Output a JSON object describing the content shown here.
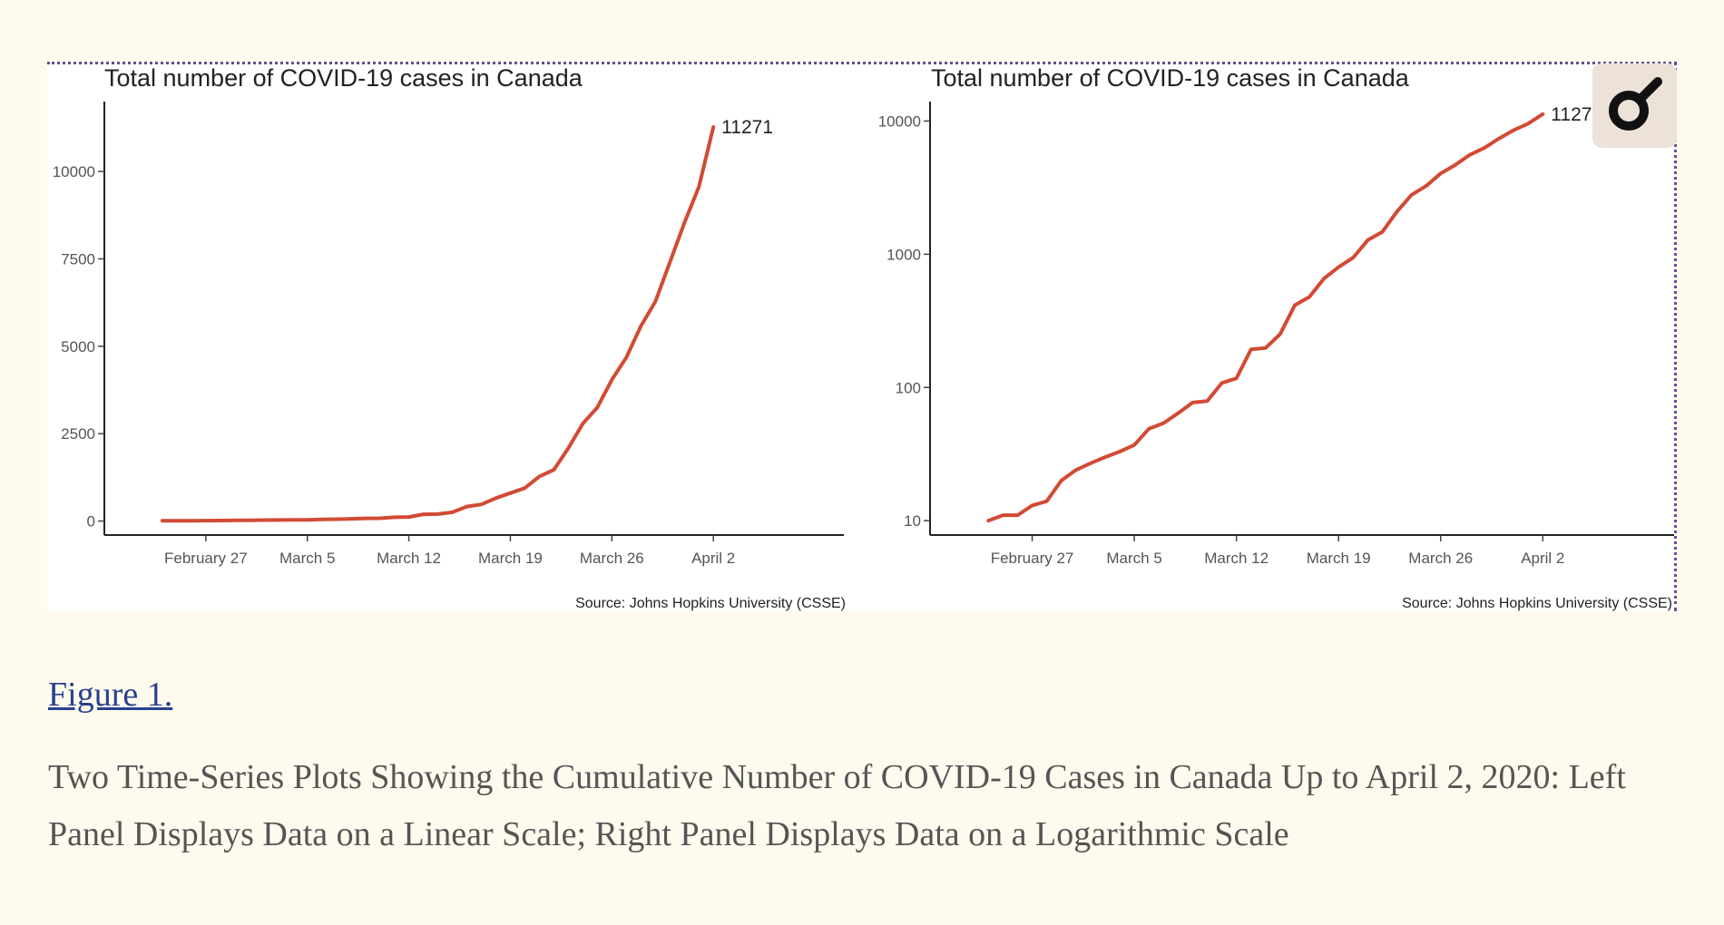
{
  "chart_data": [
    {
      "type": "line",
      "title": "Total number of COVID-19 cases in Canada",
      "source": "Source: Johns Hopkins University (CSSE)",
      "y_scale": "linear",
      "ylim": [
        0,
        12000
      ],
      "y_ticks": [
        {
          "value": 0,
          "label": "0"
        },
        {
          "value": 2500,
          "label": "2500"
        },
        {
          "value": 5000,
          "label": "5000"
        },
        {
          "value": 7500,
          "label": "7500"
        },
        {
          "value": 10000,
          "label": "10000"
        }
      ],
      "x_ticks": [
        "February 27",
        "March 5",
        "March 12",
        "March 19",
        "March 26",
        "April 2"
      ],
      "end_label": "11271",
      "line_color": "#d24a34",
      "series": [
        {
          "x": [
            "2020-02-24",
            "2020-02-25",
            "2020-02-26",
            "2020-02-27",
            "2020-02-28",
            "2020-02-29",
            "2020-03-01",
            "2020-03-02",
            "2020-03-03",
            "2020-03-04",
            "2020-03-05",
            "2020-03-06",
            "2020-03-07",
            "2020-03-08",
            "2020-03-09",
            "2020-03-10",
            "2020-03-11",
            "2020-03-12",
            "2020-03-13",
            "2020-03-14",
            "2020-03-15",
            "2020-03-16",
            "2020-03-17",
            "2020-03-18",
            "2020-03-19",
            "2020-03-20",
            "2020-03-21",
            "2020-03-22",
            "2020-03-23",
            "2020-03-24",
            "2020-03-25",
            "2020-03-26",
            "2020-03-27",
            "2020-03-28",
            "2020-03-29",
            "2020-03-30",
            "2020-03-31",
            "2020-04-01",
            "2020-04-02"
          ],
          "y": [
            10,
            11,
            11,
            13,
            14,
            20,
            24,
            27,
            30,
            33,
            37,
            49,
            54,
            64,
            77,
            79,
            108,
            117,
            193,
            198,
            252,
            415,
            478,
            657,
            800,
            943,
            1277,
            1469,
            2088,
            2790,
            3251,
            4042,
            4682,
            5576,
            6280,
            7398,
            8527,
            9560,
            11271
          ]
        }
      ]
    },
    {
      "type": "line",
      "title": "Total number of COVID-19 cases in Canada",
      "source": "Source: Johns Hopkins University (CSSE)",
      "y_scale": "log",
      "ylim": [
        7.8,
        14000
      ],
      "y_ticks": [
        {
          "value": 10,
          "label": "10"
        },
        {
          "value": 100,
          "label": "100"
        },
        {
          "value": 1000,
          "label": "1000"
        },
        {
          "value": 10000,
          "label": "10000"
        }
      ],
      "x_ticks": [
        "February 27",
        "March 5",
        "March 12",
        "March 19",
        "March 26",
        "April 2"
      ],
      "end_label": "11271",
      "line_color": "#d24a34",
      "series": [
        {
          "x": [
            "2020-02-24",
            "2020-02-25",
            "2020-02-26",
            "2020-02-27",
            "2020-02-28",
            "2020-02-29",
            "2020-03-01",
            "2020-03-02",
            "2020-03-03",
            "2020-03-04",
            "2020-03-05",
            "2020-03-06",
            "2020-03-07",
            "2020-03-08",
            "2020-03-09",
            "2020-03-10",
            "2020-03-11",
            "2020-03-12",
            "2020-03-13",
            "2020-03-14",
            "2020-03-15",
            "2020-03-16",
            "2020-03-17",
            "2020-03-18",
            "2020-03-19",
            "2020-03-20",
            "2020-03-21",
            "2020-03-22",
            "2020-03-23",
            "2020-03-24",
            "2020-03-25",
            "2020-03-26",
            "2020-03-27",
            "2020-03-28",
            "2020-03-29",
            "2020-03-30",
            "2020-03-31",
            "2020-04-01",
            "2020-04-02"
          ],
          "y": [
            10,
            11,
            11,
            13,
            14,
            20,
            24,
            27,
            30,
            33,
            37,
            49,
            54,
            64,
            77,
            79,
            108,
            117,
            193,
            198,
            252,
            415,
            478,
            657,
            800,
            943,
            1277,
            1469,
            2088,
            2790,
            3251,
            4042,
            4682,
            5576,
            6280,
            7398,
            8527,
            9560,
            11271
          ]
        }
      ]
    }
  ],
  "figure": {
    "link_label": "Figure 1.",
    "caption": "Two Time-Series Plots Showing the Cumulative Number of COVID-19 Cases in Canada Up to April 2, 2020: Left Panel Displays Data on a Linear Scale; Right Panel Displays Data on a Logarithmic Scale"
  },
  "overlay": {
    "icon": "magnifier-icon"
  }
}
